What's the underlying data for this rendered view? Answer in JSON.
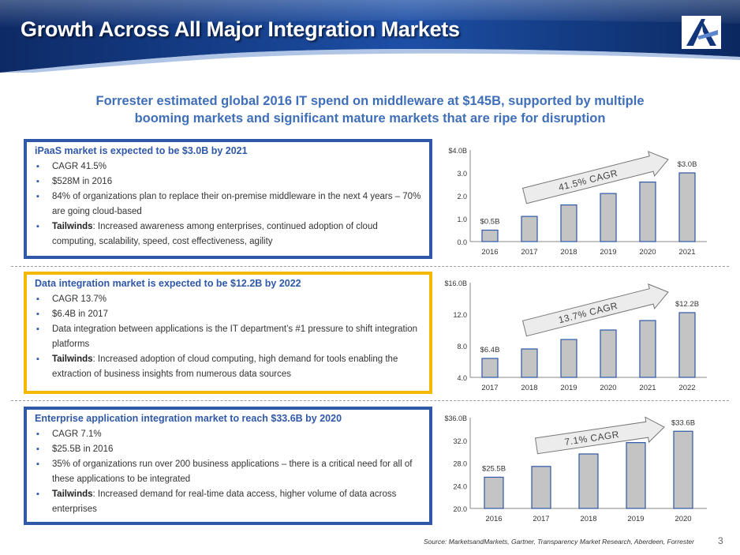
{
  "header": {
    "title": "Growth Across All Major Integration Markets",
    "subtitle_line1": "Forrester estimated global 2016 IT spend on middleware at $145B, supported by multiple",
    "subtitle_line2": "booming markets and significant mature markets that are ripe for disruption"
  },
  "colors": {
    "blue": "#2f58a8",
    "gold": "#f5b800",
    "bar": "#c4c4c4",
    "bar_edge": "#2f58a8"
  },
  "sections": [
    {
      "title": "iPaaS market is expected to be $3.0B by 2021",
      "bullets": [
        "CAGR 41.5%",
        "$528M in 2016",
        "84% of organizations plan to replace their on-premise middleware in the next 4 years – 70% are going cloud-based"
      ],
      "tailwinds_label": "Tailwinds",
      "tailwinds_text": ": Increased awareness among enterprises, continued adoption of cloud computing, scalability, speed, cost effectiveness, agility"
    },
    {
      "title": "Data integration market is expected to be $12.2B by 2022",
      "bullets": [
        "CAGR 13.7%",
        "$6.4B in 2017",
        "Data integration between applications is the IT department’s #1 pressure to shift integration platforms"
      ],
      "tailwinds_label": "Tailwinds",
      "tailwinds_text": ": Increased adoption of cloud computing, high demand for tools enabling the extraction of business insights from numerous data sources"
    },
    {
      "title": "Enterprise application integration market to reach $33.6B by 2020",
      "bullets": [
        "CAGR 7.1%",
        "$25.5B in 2016",
        "35% of organizations run over 200 business applications – there is a critical need for all of these applications to be integrated"
      ],
      "tailwinds_label": "Tailwinds",
      "tailwinds_text": ": Increased demand for real-time data access, higher volume of data across enterprises"
    }
  ],
  "chart_data": [
    {
      "type": "bar",
      "title": "",
      "categories": [
        "2016",
        "2017",
        "2018",
        "2019",
        "2020",
        "2021"
      ],
      "values": [
        0.5,
        1.1,
        1.6,
        2.1,
        2.6,
        3.0
      ],
      "ylim": [
        0,
        4
      ],
      "yticks": [
        0,
        1,
        2,
        3,
        4
      ],
      "ytick_labels": [
        "0.0",
        "1.0",
        "2.0",
        "3.0",
        "$4.0B"
      ],
      "first_label": "$0.5B",
      "last_label": "$3.0B",
      "cagr_label": "41.5% CAGR"
    },
    {
      "type": "bar",
      "title": "",
      "categories": [
        "2017",
        "2018",
        "2019",
        "2020",
        "2021",
        "2022"
      ],
      "values": [
        6.4,
        7.6,
        8.8,
        10.0,
        11.2,
        12.2
      ],
      "ylim": [
        4,
        16
      ],
      "yticks": [
        4,
        8,
        12,
        16
      ],
      "ytick_labels": [
        "4.0",
        "8.0",
        "12.0",
        "$16.0B"
      ],
      "first_label": "$6.4B",
      "last_label": "$12.2B",
      "cagr_label": "13.7% CAGR"
    },
    {
      "type": "bar",
      "title": "",
      "categories": [
        "2016",
        "2017",
        "2018",
        "2019",
        "2020"
      ],
      "values": [
        25.5,
        27.4,
        29.6,
        31.6,
        33.6
      ],
      "ylim": [
        20,
        36
      ],
      "yticks": [
        20,
        24,
        28,
        32,
        36
      ],
      "ytick_labels": [
        "20.0",
        "24.0",
        "28.0",
        "32.0",
        "$36.0B"
      ],
      "first_label": "$25.5B",
      "last_label": "$33.6B",
      "cagr_label": "7.1% CAGR"
    }
  ],
  "footer": {
    "source": "Source: MarketsandMarkets, Gartner, Transparency Market Research, Aberdeen, Forrester",
    "page_number": "3"
  }
}
